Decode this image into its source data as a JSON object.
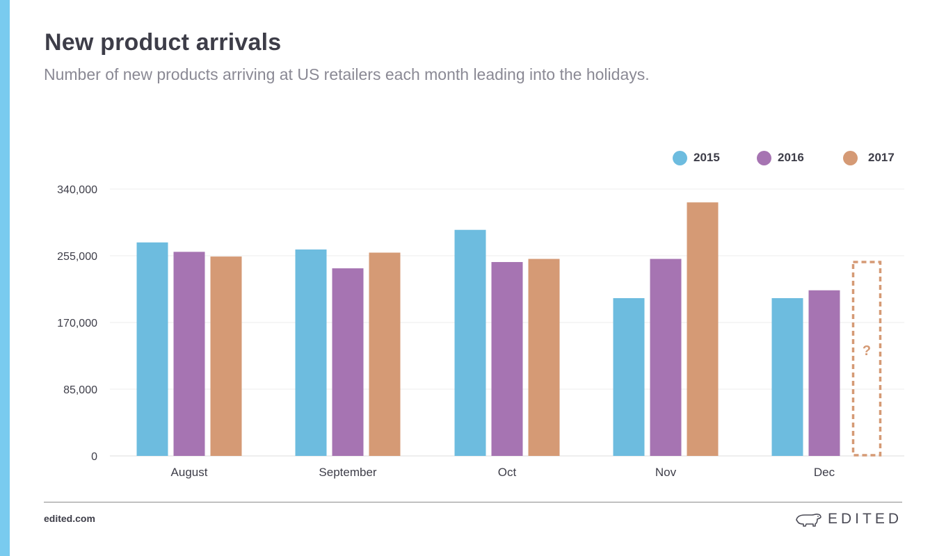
{
  "header": {
    "title": "New product arrivals",
    "subtitle": "Number of new products arriving at US retailers each month leading into the holidays."
  },
  "footer": {
    "site": "edited.com",
    "brand": "EDITED",
    "brand_icon": "polar-bear-icon"
  },
  "colors": {
    "accent": "#79cbef",
    "series_2015": "#6dbcdf",
    "series_2016": "#a674b2",
    "series_2017": "#d59a75",
    "grid": "#ececec",
    "text": "#3d3d48"
  },
  "chart_data": {
    "type": "bar",
    "title": "New product arrivals",
    "subtitle": "Number of new products arriving at US retailers each month leading into the holidays.",
    "categories": [
      "August",
      "September",
      "Oct",
      "Nov",
      "Dec"
    ],
    "series": [
      {
        "name": "2015",
        "color": "#6dbcdf",
        "values": [
          272000,
          263000,
          288000,
          201000,
          201000
        ]
      },
      {
        "name": "2016",
        "color": "#a674b2",
        "values": [
          260000,
          239000,
          247000,
          251000,
          211000
        ]
      },
      {
        "name": "2017",
        "color": "#d59a75",
        "values": [
          254000,
          259000,
          251000,
          323000,
          null
        ]
      }
    ],
    "placeholder": {
      "series": "2017",
      "category": "Dec",
      "value": 247000,
      "label": "?",
      "style": "dashed outline"
    },
    "yticks": [
      0,
      85000,
      170000,
      255000,
      340000
    ],
    "ytick_labels": [
      "0",
      "85,000",
      "170,000",
      "255,000",
      "340,000"
    ],
    "ylim": [
      0,
      340000
    ],
    "xlabel": "",
    "ylabel": "",
    "grid": true,
    "legend_position": "top-right"
  }
}
